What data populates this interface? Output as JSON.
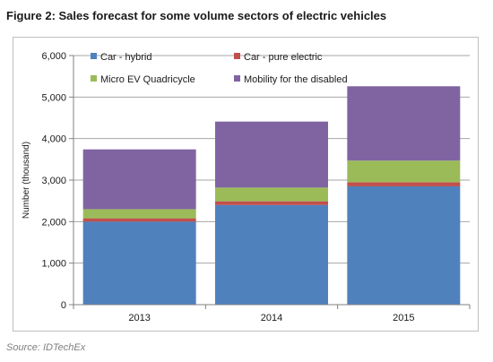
{
  "title": "Figure 2: Sales forecast for some volume sectors of electric vehicles",
  "source": "Source: IDTechEx",
  "chart_data": {
    "type": "bar",
    "stacked": true,
    "categories": [
      "2013",
      "2014",
      "2015"
    ],
    "series": [
      {
        "name": "Car - hybrid",
        "color": "#4f81bd",
        "values": [
          2000,
          2400,
          2850
        ]
      },
      {
        "name": "Car - pure electric",
        "color": "#c0504d",
        "values": [
          80,
          90,
          100
        ]
      },
      {
        "name": "Micro EV Quadricycle",
        "color": "#9bbb59",
        "values": [
          220,
          330,
          520
        ]
      },
      {
        "name": "Mobility for the disabled",
        "color": "#8064a2",
        "values": [
          1440,
          1590,
          1790
        ]
      }
    ],
    "ylabel": "Number (thousand)",
    "xlabel": "",
    "ylim": [
      0,
      6000
    ],
    "yticks": [
      "0",
      "1,000",
      "2,000",
      "3,000",
      "4,000",
      "5,000",
      "6,000"
    ],
    "ytick_values": [
      0,
      1000,
      2000,
      3000,
      4000,
      5000,
      6000
    ],
    "grid": true,
    "legend_position": "top-left inside"
  }
}
